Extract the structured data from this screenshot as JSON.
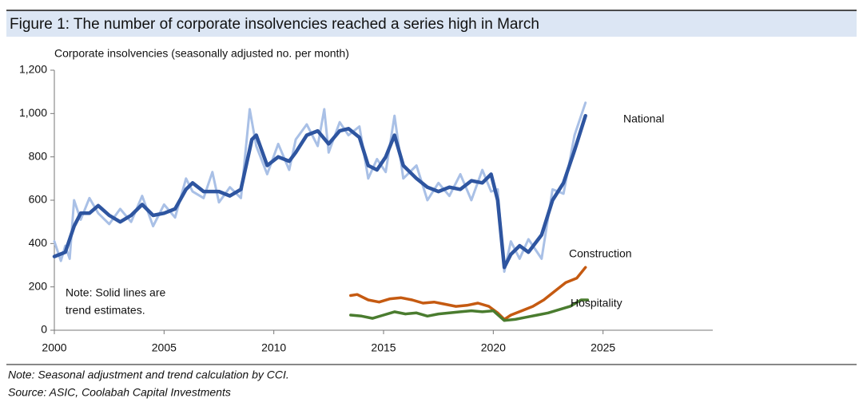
{
  "chart_data": {
    "type": "line",
    "title": "Figure 1: The number of corporate insolvencies reached a series high in March",
    "y_label": "Corporate insolvencies (seasonally adjusted no. per month)",
    "annotations": [
      "Note: Solid lines are",
      "trend estimates."
    ],
    "notes": [
      "Note: Seasonal adjustment and trend calculation by CCI.",
      "Source: ASIC, Coolabah Capital Investments"
    ],
    "xlim": [
      2000,
      2030
    ],
    "xticks": [
      2000,
      2005,
      2010,
      2015,
      2020,
      2025
    ],
    "ylim": [
      0,
      1200
    ],
    "yticks": [
      0,
      200,
      400,
      600,
      800,
      {
        "value": 1000,
        "label": "1,000"
      },
      {
        "value": 1200,
        "label": "1,200"
      }
    ],
    "series": [
      {
        "color": "#a9c0e6",
        "x": [
          2000,
          2000.3,
          2000.5,
          2000.7,
          2000.9,
          2001.2,
          2001.6,
          2002,
          2002.5,
          2003,
          2003.5,
          2004,
          2004.5,
          2005,
          2005.5,
          2006,
          2006.3,
          2006.8,
          2007.2,
          2007.5,
          2008,
          2008.5,
          2008.9,
          2009.2,
          2009.7,
          2010.2,
          2010.7,
          2011,
          2011.5,
          2012,
          2012.3,
          2012.5,
          2013,
          2013.4,
          2013.9,
          2014.3,
          2014.7,
          2015.1,
          2015.5,
          2015.9,
          2016.5,
          2017,
          2017.5,
          2018,
          2018.5,
          2019,
          2019.5,
          2019.9,
          2020.2,
          2020.5,
          2020.8,
          2021.2,
          2021.6,
          2022.2,
          2022.7,
          2023.2,
          2023.7,
          2024.2
        ],
        "values": [
          410,
          320,
          390,
          330,
          600,
          510,
          610,
          540,
          490,
          560,
          500,
          620,
          480,
          580,
          520,
          700,
          640,
          610,
          730,
          590,
          660,
          610,
          1020,
          850,
          720,
          860,
          740,
          880,
          950,
          850,
          1020,
          820,
          960,
          900,
          940,
          700,
          790,
          730,
          990,
          700,
          760,
          600,
          680,
          620,
          720,
          600,
          740,
          640,
          650,
          270,
          410,
          330,
          420,
          330,
          650,
          630,
          900,
          1050
        ]
      },
      {
        "name": "National",
        "color": "#2e55a0",
        "x": [
          2000,
          2000.5,
          2000.9,
          2001.2,
          2001.6,
          2002,
          2002.5,
          2003,
          2003.5,
          2004,
          2004.5,
          2005,
          2005.5,
          2006,
          2006.3,
          2006.8,
          2007.5,
          2008,
          2008.5,
          2009,
          2009.2,
          2009.7,
          2010.2,
          2010.7,
          2011,
          2011.5,
          2012,
          2012.5,
          2013,
          2013.4,
          2013.9,
          2014.3,
          2014.7,
          2015.1,
          2015.5,
          2015.9,
          2016.5,
          2017,
          2017.5,
          2018,
          2018.5,
          2019,
          2019.5,
          2019.9,
          2020.2,
          2020.5,
          2020.8,
          2021.2,
          2021.6,
          2022.2,
          2022.7,
          2023.2,
          2023.7,
          2024.2
        ],
        "values": [
          340,
          360,
          480,
          540,
          540,
          575,
          530,
          500,
          530,
          580,
          530,
          540,
          560,
          650,
          680,
          640,
          640,
          620,
          650,
          880,
          900,
          760,
          800,
          780,
          820,
          900,
          920,
          860,
          920,
          930,
          890,
          760,
          740,
          800,
          900,
          760,
          700,
          660,
          640,
          660,
          650,
          690,
          680,
          720,
          600,
          290,
          350,
          390,
          360,
          440,
          600,
          680,
          830,
          990
        ]
      },
      {
        "name": "Construction",
        "color": "#c55a11",
        "x": [
          2013.5,
          2013.8,
          2014.3,
          2014.8,
          2015.3,
          2015.8,
          2016.3,
          2016.8,
          2017.3,
          2017.8,
          2018.3,
          2018.8,
          2019.3,
          2019.8,
          2020.2,
          2020.5,
          2020.8,
          2021.3,
          2021.8,
          2022.3,
          2022.8,
          2023.3,
          2023.8,
          2024.2
        ],
        "values": [
          160,
          165,
          140,
          130,
          145,
          150,
          140,
          125,
          130,
          120,
          110,
          115,
          125,
          110,
          80,
          50,
          70,
          90,
          110,
          140,
          180,
          220,
          240,
          290
        ]
      },
      {
        "name": "Hospitality",
        "color": "#4a7c2f",
        "x": [
          2013.5,
          2014,
          2014.5,
          2015,
          2015.5,
          2016,
          2016.5,
          2017,
          2017.5,
          2018,
          2018.5,
          2019,
          2019.5,
          2020,
          2020.5,
          2021,
          2021.5,
          2022,
          2022.5,
          2023,
          2023.5,
          2024,
          2024.3
        ],
        "values": [
          70,
          65,
          55,
          70,
          85,
          75,
          80,
          65,
          75,
          80,
          85,
          90,
          85,
          90,
          45,
          50,
          60,
          70,
          80,
          95,
          110,
          140,
          140
        ]
      }
    ]
  }
}
